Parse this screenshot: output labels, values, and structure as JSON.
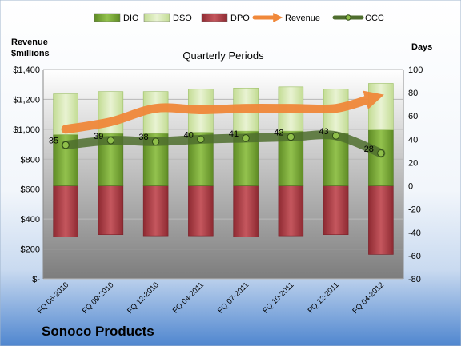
{
  "chart_data": {
    "type": "bar",
    "title": "Quarterly Periods",
    "company": "Sonoco Products",
    "left_axis_label": "Revenue\n$millions",
    "right_axis_label": "Days",
    "categories": [
      "FQ 06-2010",
      "FQ 09-2010",
      "FQ 12-2010",
      "FQ 04-2011",
      "FQ 07-2011",
      "FQ 10-2011",
      "FQ 12-2011",
      "FQ 04-2012"
    ],
    "left_axis": {
      "min": 0,
      "max": 1400,
      "step": 200,
      "tick_labels": [
        "$-",
        "$200",
        "$400",
        "$600",
        "$800",
        "$1,000",
        "$1,200",
        "$1,400"
      ]
    },
    "right_axis": {
      "min": -80,
      "max": 100,
      "step": 20,
      "tick_labels": [
        "-80",
        "-60",
        "-40",
        "-20",
        "0",
        "20",
        "40",
        "60",
        "80",
        "100"
      ]
    },
    "series": [
      {
        "name": "DIO",
        "axis": "right",
        "kind": "stacked-bar",
        "color": "#7fae3a",
        "values": [
          44,
          45,
          45,
          46,
          47,
          47,
          45,
          48
        ]
      },
      {
        "name": "DSO",
        "axis": "right",
        "kind": "stacked-bar",
        "color": "#d7e8b0",
        "values": [
          35,
          36,
          36,
          37,
          37,
          38,
          38,
          40
        ]
      },
      {
        "name": "DPO",
        "axis": "right",
        "kind": "negative-bar",
        "color": "#b3424a",
        "values": [
          -44,
          -42,
          -43,
          -43,
          -44,
          -43,
          -42,
          -59
        ]
      },
      {
        "name": "Revenue",
        "axis": "left",
        "kind": "arrow-line",
        "color": "#f0883a",
        "values": [
          1000,
          1050,
          1140,
          1130,
          1140,
          1140,
          1140,
          1210
        ]
      },
      {
        "name": "CCC",
        "axis": "right",
        "kind": "line-markers",
        "color": "#5a7d3a",
        "values": [
          35,
          39,
          38,
          40,
          41,
          42,
          43,
          28
        ]
      }
    ],
    "data_labels": [
      "35",
      "39",
      "38",
      "40",
      "41",
      "42",
      "43",
      "28"
    ]
  }
}
